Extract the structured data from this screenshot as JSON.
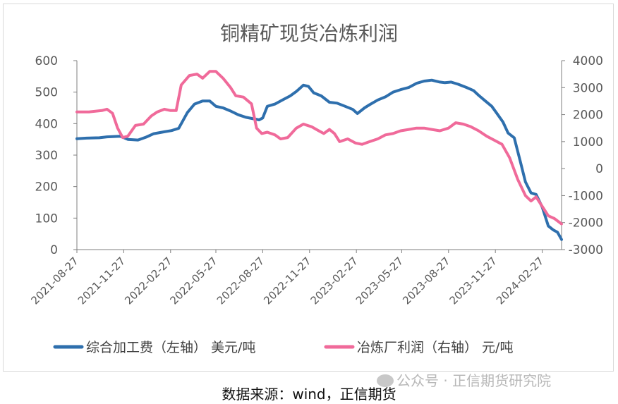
{
  "chart_data": {
    "type": "line",
    "title": "铜精矿现货冶炼利润",
    "x_ticks": [
      "2021-08-27",
      "2021-11-27",
      "2022-02-27",
      "2022-05-27",
      "2022-08-27",
      "2022-11-27",
      "2023-02-27",
      "2023-05-27",
      "2023-08-27",
      "2023-11-27",
      "2024-02-27"
    ],
    "x_range": [
      "2021-08-27",
      "2024-04-05"
    ],
    "y_left": {
      "range": [
        0,
        600
      ],
      "ticks": [
        0,
        100,
        200,
        300,
        400,
        500,
        600
      ]
    },
    "y_right": {
      "range": [
        -3000,
        4000
      ],
      "ticks": [
        -3000,
        -2000,
        -1000,
        0,
        1000,
        2000,
        3000,
        4000
      ]
    },
    "grid": false,
    "legend_position": "bottom",
    "series": [
      {
        "name": "综合加工费（左轴） 美元/吨",
        "axis": "left",
        "color": "#2e6fad",
        "points": [
          [
            "2021-08-27",
            352
          ],
          [
            "2021-09-15",
            354
          ],
          [
            "2021-10-10",
            355
          ],
          [
            "2021-10-25",
            358
          ],
          [
            "2021-11-20",
            360
          ],
          [
            "2021-12-05",
            350
          ],
          [
            "2021-12-25",
            348
          ],
          [
            "2022-01-10",
            357
          ],
          [
            "2022-01-25",
            368
          ],
          [
            "2022-02-15",
            374
          ],
          [
            "2022-03-01",
            378
          ],
          [
            "2022-03-15",
            385
          ],
          [
            "2022-04-01",
            435
          ],
          [
            "2022-04-15",
            462
          ],
          [
            "2022-05-01",
            472
          ],
          [
            "2022-05-15",
            472
          ],
          [
            "2022-05-27",
            455
          ],
          [
            "2022-06-10",
            450
          ],
          [
            "2022-06-25",
            440
          ],
          [
            "2022-07-10",
            428
          ],
          [
            "2022-07-25",
            420
          ],
          [
            "2022-08-10",
            415
          ],
          [
            "2022-08-20",
            412
          ],
          [
            "2022-08-27",
            418
          ],
          [
            "2022-09-05",
            455
          ],
          [
            "2022-09-20",
            462
          ],
          [
            "2022-10-05",
            475
          ],
          [
            "2022-10-20",
            488
          ],
          [
            "2022-11-01",
            502
          ],
          [
            "2022-11-15",
            522
          ],
          [
            "2022-11-25",
            518
          ],
          [
            "2022-12-05",
            498
          ],
          [
            "2022-12-20",
            488
          ],
          [
            "2023-01-05",
            468
          ],
          [
            "2023-01-20",
            465
          ],
          [
            "2023-02-05",
            455
          ],
          [
            "2023-02-20",
            445
          ],
          [
            "2023-03-01",
            432
          ],
          [
            "2023-03-15",
            450
          ],
          [
            "2023-03-25",
            460
          ],
          [
            "2023-04-10",
            475
          ],
          [
            "2023-04-25",
            485
          ],
          [
            "2023-05-10",
            500
          ],
          [
            "2023-05-25",
            508
          ],
          [
            "2023-06-10",
            515
          ],
          [
            "2023-06-25",
            528
          ],
          [
            "2023-07-10",
            535
          ],
          [
            "2023-07-25",
            538
          ],
          [
            "2023-08-10",
            532
          ],
          [
            "2023-08-20",
            530
          ],
          [
            "2023-09-01",
            532
          ],
          [
            "2023-09-15",
            525
          ],
          [
            "2023-10-01",
            515
          ],
          [
            "2023-10-15",
            505
          ],
          [
            "2023-10-25",
            490
          ],
          [
            "2023-11-05",
            475
          ],
          [
            "2023-11-20",
            455
          ],
          [
            "2023-12-01",
            430
          ],
          [
            "2023-12-12",
            405
          ],
          [
            "2023-12-22",
            370
          ],
          [
            "2024-01-03",
            355
          ],
          [
            "2024-01-15",
            280
          ],
          [
            "2024-01-25",
            215
          ],
          [
            "2024-02-05",
            180
          ],
          [
            "2024-02-15",
            175
          ],
          [
            "2024-02-27",
            135
          ],
          [
            "2024-03-10",
            75
          ],
          [
            "2024-03-20",
            62
          ],
          [
            "2024-03-28",
            55
          ],
          [
            "2024-04-05",
            32
          ]
        ]
      },
      {
        "name": "冶炼厂利润（右轴） 元/吨",
        "axis": "right",
        "color": "#f06a9a",
        "points": [
          [
            "2021-08-27",
            2100
          ],
          [
            "2021-09-20",
            2100
          ],
          [
            "2021-10-15",
            2150
          ],
          [
            "2021-10-25",
            2200
          ],
          [
            "2021-11-05",
            2050
          ],
          [
            "2021-11-15",
            1500
          ],
          [
            "2021-11-25",
            1150
          ],
          [
            "2021-12-05",
            1200
          ],
          [
            "2021-12-20",
            1600
          ],
          [
            "2022-01-05",
            1650
          ],
          [
            "2022-01-20",
            1950
          ],
          [
            "2022-02-01",
            2100
          ],
          [
            "2022-02-15",
            2200
          ],
          [
            "2022-02-27",
            2150
          ],
          [
            "2022-03-10",
            2150
          ],
          [
            "2022-03-20",
            3100
          ],
          [
            "2022-04-05",
            3450
          ],
          [
            "2022-04-20",
            3500
          ],
          [
            "2022-05-01",
            3350
          ],
          [
            "2022-05-15",
            3600
          ],
          [
            "2022-05-27",
            3600
          ],
          [
            "2022-06-10",
            3350
          ],
          [
            "2022-06-25",
            3000
          ],
          [
            "2022-07-05",
            2700
          ],
          [
            "2022-07-20",
            2650
          ],
          [
            "2022-08-05",
            2400
          ],
          [
            "2022-08-15",
            1500
          ],
          [
            "2022-08-25",
            1300
          ],
          [
            "2022-09-05",
            1350
          ],
          [
            "2022-09-20",
            1250
          ],
          [
            "2022-10-01",
            1100
          ],
          [
            "2022-10-15",
            1150
          ],
          [
            "2022-11-01",
            1500
          ],
          [
            "2022-11-15",
            1650
          ],
          [
            "2022-12-01",
            1550
          ],
          [
            "2022-12-15",
            1400
          ],
          [
            "2022-12-25",
            1300
          ],
          [
            "2023-01-05",
            1450
          ],
          [
            "2023-01-15",
            1300
          ],
          [
            "2023-01-25",
            1000
          ],
          [
            "2023-02-10",
            1100
          ],
          [
            "2023-02-25",
            950
          ],
          [
            "2023-03-10",
            900
          ],
          [
            "2023-03-25",
            1000
          ],
          [
            "2023-04-10",
            1100
          ],
          [
            "2023-04-25",
            1250
          ],
          [
            "2023-05-10",
            1300
          ],
          [
            "2023-05-25",
            1400
          ],
          [
            "2023-06-10",
            1450
          ],
          [
            "2023-06-25",
            1500
          ],
          [
            "2023-07-10",
            1500
          ],
          [
            "2023-07-25",
            1450
          ],
          [
            "2023-08-10",
            1400
          ],
          [
            "2023-08-27",
            1500
          ],
          [
            "2023-09-10",
            1700
          ],
          [
            "2023-09-25",
            1650
          ],
          [
            "2023-10-10",
            1550
          ],
          [
            "2023-10-25",
            1400
          ],
          [
            "2023-11-10",
            1200
          ],
          [
            "2023-11-25",
            1050
          ],
          [
            "2023-12-10",
            900
          ],
          [
            "2023-12-25",
            400
          ],
          [
            "2024-01-10",
            -400
          ],
          [
            "2024-01-25",
            -1000
          ],
          [
            "2024-02-05",
            -1200
          ],
          [
            "2024-02-15",
            -1050
          ],
          [
            "2024-02-27",
            -1400
          ],
          [
            "2024-03-10",
            -1750
          ],
          [
            "2024-03-22",
            -1850
          ],
          [
            "2024-04-05",
            -2050
          ]
        ]
      }
    ]
  },
  "source_text": "数据来源：wind，正信期货",
  "watermark": "公众号 · 正信期货研究院"
}
